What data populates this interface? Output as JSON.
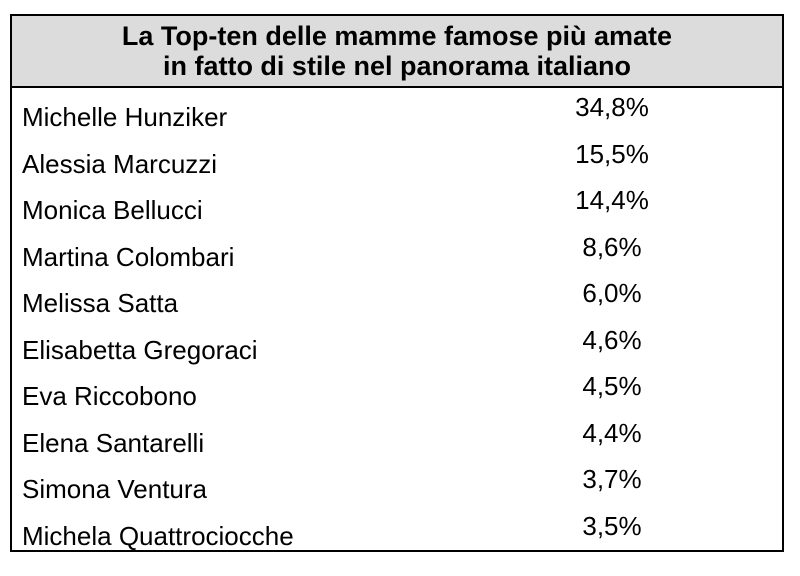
{
  "chart_data": {
    "type": "table",
    "title_lines": [
      "La Top-ten delle mamme famose più amate",
      "in fatto di stile nel panorama italiano"
    ],
    "rows": [
      {
        "name": "Michelle Hunziker",
        "value": "34,8%",
        "percent": 34.8
      },
      {
        "name": "Alessia Marcuzzi",
        "value": "15,5%",
        "percent": 15.5
      },
      {
        "name": "Monica Bellucci",
        "value": "14,4%",
        "percent": 14.4
      },
      {
        "name": "Martina Colombari",
        "value": "8,6%",
        "percent": 8.6
      },
      {
        "name": "Melissa Satta",
        "value": "6,0%",
        "percent": 6.0
      },
      {
        "name": "Elisabetta Gregoraci",
        "value": "4,6%",
        "percent": 4.6
      },
      {
        "name": "Eva Riccobono",
        "value": "4,5%",
        "percent": 4.5
      },
      {
        "name": "Elena Santarelli",
        "value": "4,4%",
        "percent": 4.4
      },
      {
        "name": "Simona Ventura",
        "value": "3,7%",
        "percent": 3.7
      },
      {
        "name": "Michela Quattrociocche",
        "value": "3,5%",
        "percent": 3.5
      }
    ]
  },
  "colors": {
    "title_background": "#dcdcdc",
    "border": "#000000",
    "text": "#000000"
  }
}
